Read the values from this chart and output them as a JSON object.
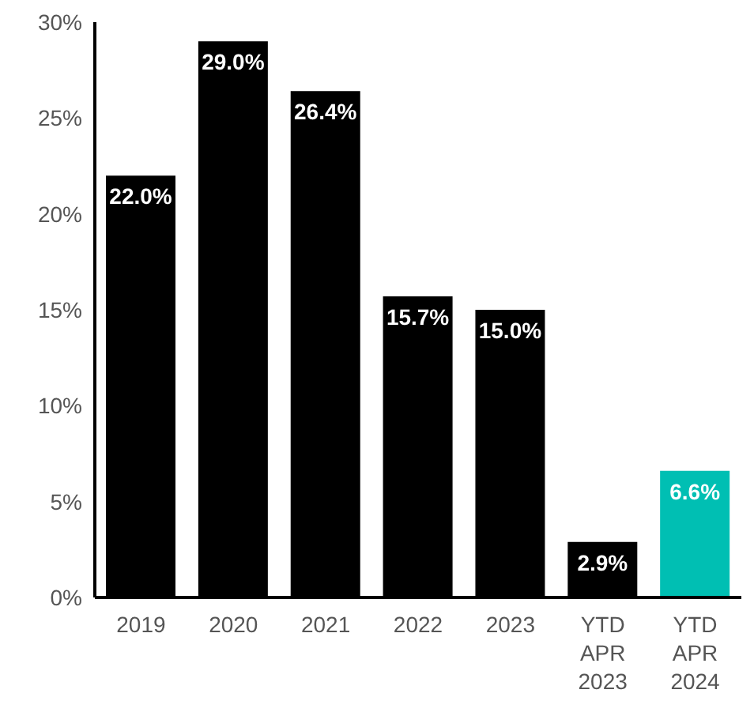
{
  "chart_data": {
    "type": "bar",
    "categories": [
      "2019",
      "2020",
      "2021",
      "2022",
      "2023",
      "YTD APR 2023",
      "YTD APR 2024"
    ],
    "values": [
      22.0,
      29.0,
      26.4,
      15.7,
      15.0,
      2.9,
      6.6
    ],
    "value_labels": [
      "22.0%",
      "29.0%",
      "26.4%",
      "15.7%",
      "15.0%",
      "2.9%",
      "6.6%"
    ],
    "colors": [
      "#000000",
      "#000000",
      "#000000",
      "#000000",
      "#000000",
      "#000000",
      "#00bfb3"
    ],
    "ylim": [
      0,
      30
    ],
    "yticks": [
      {
        "value": 0,
        "label": "0%"
      },
      {
        "value": 5,
        "label": "5%"
      },
      {
        "value": 10,
        "label": "10%"
      },
      {
        "value": 15,
        "label": "15%"
      },
      {
        "value": 20,
        "label": "20%"
      },
      {
        "value": 25,
        "label": "25%"
      },
      {
        "value": 30,
        "label": "30%"
      }
    ],
    "grid": false,
    "legend": false
  }
}
